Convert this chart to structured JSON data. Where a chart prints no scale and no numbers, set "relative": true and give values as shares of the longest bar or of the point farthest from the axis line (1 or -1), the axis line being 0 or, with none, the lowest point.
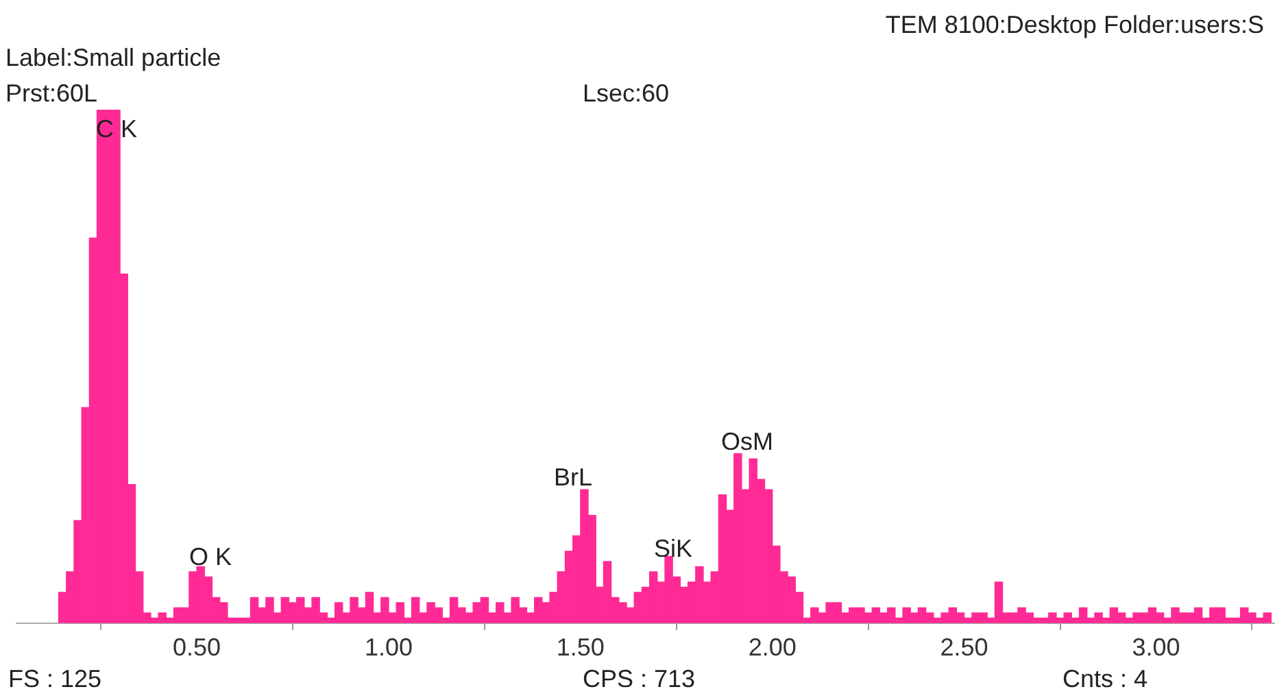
{
  "chart_data": {
    "type": "bar",
    "relative": true,
    "color": "#ff2a95",
    "grid": false,
    "legend": false,
    "xlim": [
      0.03,
      3.31
    ],
    "xticks": [
      {
        "value": 0.5,
        "label": "0.50"
      },
      {
        "value": 1,
        "label": "1.00"
      },
      {
        "value": 1.5,
        "label": "1.50"
      },
      {
        "value": 2,
        "label": "2.00"
      },
      {
        "value": 2.5,
        "label": "2.50"
      },
      {
        "value": 3,
        "label": "3.00"
      }
    ],
    "x": [
      0.15,
      0.17,
      0.19,
      0.21,
      0.23,
      0.25,
      0.27,
      0.29,
      0.31,
      0.33,
      0.35,
      0.37,
      0.39,
      0.41,
      0.43,
      0.45,
      0.47,
      0.49,
      0.51,
      0.53,
      0.55,
      0.57,
      0.59,
      0.61,
      0.63,
      0.65,
      0.67,
      0.69,
      0.71,
      0.73,
      0.75,
      0.77,
      0.79,
      0.81,
      0.83,
      0.85,
      0.87,
      0.89,
      0.91,
      0.93,
      0.95,
      0.97,
      0.99,
      1.01,
      1.03,
      1.05,
      1.07,
      1.09,
      1.11,
      1.13,
      1.15,
      1.17,
      1.19,
      1.21,
      1.23,
      1.25,
      1.27,
      1.29,
      1.31,
      1.33,
      1.35,
      1.37,
      1.39,
      1.41,
      1.43,
      1.45,
      1.47,
      1.49,
      1.51,
      1.53,
      1.55,
      1.57,
      1.59,
      1.61,
      1.63,
      1.65,
      1.67,
      1.69,
      1.71,
      1.73,
      1.75,
      1.77,
      1.79,
      1.81,
      1.83,
      1.85,
      1.87,
      1.89,
      1.91,
      1.93,
      1.95,
      1.97,
      1.99,
      2.01,
      2.03,
      2.05,
      2.07,
      2.09,
      2.11,
      2.13,
      2.15,
      2.17,
      2.19,
      2.21,
      2.23,
      2.25,
      2.27,
      2.29,
      2.31,
      2.33,
      2.35,
      2.37,
      2.39,
      2.41,
      2.43,
      2.45,
      2.47,
      2.49,
      2.51,
      2.53,
      2.55,
      2.57,
      2.59,
      2.61,
      2.63,
      2.65,
      2.67,
      2.69,
      2.71,
      2.73,
      2.75,
      2.77,
      2.79,
      2.81,
      2.83,
      2.85,
      2.87,
      2.89,
      2.91,
      2.93,
      2.95,
      2.97,
      2.99,
      3.01,
      3.03,
      3.05,
      3.07,
      3.09,
      3.11,
      3.13,
      3.15,
      3.17,
      3.19,
      3.21,
      3.23,
      3.25,
      3.27,
      3.29
    ],
    "values": [
      0.06,
      0.1,
      0.2,
      0.42,
      0.75,
      1,
      1,
      1,
      0.68,
      0.27,
      0.1,
      0.02,
      0.01,
      0.02,
      0.01,
      0.03,
      0.03,
      0.1,
      0.11,
      0.09,
      0.05,
      0.04,
      0.01,
      0.01,
      0.01,
      0.05,
      0.03,
      0.05,
      0.02,
      0.05,
      0.04,
      0.05,
      0.03,
      0.05,
      0.02,
      0.01,
      0.04,
      0.02,
      0.05,
      0.03,
      0.06,
      0.02,
      0.05,
      0.02,
      0.04,
      0.01,
      0.05,
      0.02,
      0.04,
      0.03,
      0.01,
      0.05,
      0.03,
      0.02,
      0.04,
      0.05,
      0.02,
      0.04,
      0.02,
      0.05,
      0.03,
      0.02,
      0.05,
      0.04,
      0.06,
      0.1,
      0.14,
      0.17,
      0.26,
      0.21,
      0.07,
      0.12,
      0.05,
      0.04,
      0.03,
      0.06,
      0.07,
      0.1,
      0.08,
      0.13,
      0.09,
      0.07,
      0.08,
      0.11,
      0.08,
      0.1,
      0.25,
      0.22,
      0.33,
      0.26,
      0.32,
      0.28,
      0.26,
      0.15,
      0.1,
      0.09,
      0.06,
      0.01,
      0.03,
      0.02,
      0.04,
      0.04,
      0.02,
      0.03,
      0.03,
      0.02,
      0.03,
      0.02,
      0.03,
      0.01,
      0.03,
      0.02,
      0.03,
      0.02,
      0.01,
      0.02,
      0.03,
      0.02,
      0.01,
      0.02,
      0.02,
      0.01,
      0.08,
      0.02,
      0.02,
      0.03,
      0.02,
      0.01,
      0.01,
      0.02,
      0.01,
      0.02,
      0.01,
      0.03,
      0.01,
      0.02,
      0.01,
      0.03,
      0.02,
      0.01,
      0.02,
      0.02,
      0.03,
      0.02,
      0.01,
      0.03,
      0.02,
      0.02,
      0.03,
      0.01,
      0.03,
      0.03,
      0.01,
      0.01,
      0.03,
      0.02,
      0.01,
      0.02
    ],
    "annotations": [
      "C K",
      "O K",
      "BrL",
      "SiK",
      "OsM",
      "TEM 8100:Desktop Folder:users:S",
      "Label:Small particle",
      "Prst:60L",
      "Lsec:60",
      "FS : 125",
      "CPS : 713",
      "Cnts : 4"
    ]
  }
}
